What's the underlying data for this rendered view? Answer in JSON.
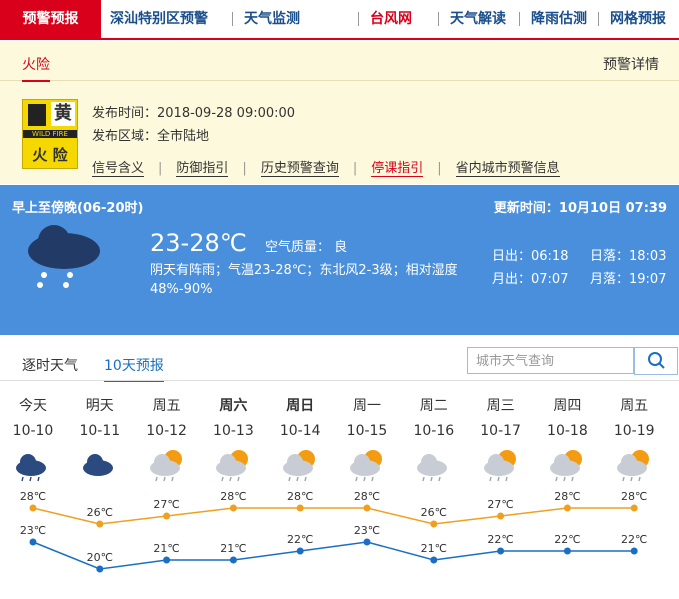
{
  "nav": {
    "items": [
      "预警预报",
      "深汕特别区预警",
      "天气监测",
      "台风网",
      "天气解读",
      "降雨估测",
      "网格预报"
    ]
  },
  "warning": {
    "tab": "火险",
    "detail_link": "预警详情",
    "icon": {
      "level": "黄",
      "sub": "WILD FIRE",
      "kind": "火 险"
    },
    "time": "发布时间：2018-09-28 09:00:00",
    "area": "发布区域：全市陆地",
    "links": [
      "信号含义",
      "防御指引",
      "历史预警查询",
      "停课指引",
      "省内城市预警信息"
    ]
  },
  "today": {
    "period": "早上至傍晚(06-20时)",
    "updated": "更新时间：10月10日 07:39",
    "temp": "23-28℃",
    "air": "空气质量： 良",
    "desc": "阴天有阵雨；气温23-28℃；东北风2-3级；相对湿度48%-90%",
    "sunrise": "日出：06:18",
    "sunset": "日落：18:03",
    "moonrise": "月出：07:07",
    "moonset": "月落：19:07"
  },
  "forecast": {
    "tabs": [
      "逐时天气",
      "10天预报"
    ],
    "search_placeholder": "城市天气查询",
    "weekdays": [
      "今天",
      "明天",
      "周五",
      "周六",
      "周日",
      "周一",
      "周二",
      "周三",
      "周四",
      "周五"
    ],
    "dates": [
      "10-10",
      "10-11",
      "10-12",
      "10-13",
      "10-14",
      "10-15",
      "10-16",
      "10-17",
      "10-18",
      "10-19"
    ],
    "highs": {
      "values": [
        28,
        26,
        27,
        28,
        28,
        28,
        26,
        27,
        28,
        28
      ],
      "value_labels": [
        "28℃",
        "26℃",
        "27℃",
        "28℃",
        "28℃",
        "28℃",
        "26℃",
        "27℃",
        "28℃",
        "28℃"
      ],
      "color": "#f0a020"
    },
    "lows": {
      "values": [
        23,
        20,
        21,
        21,
        22,
        23,
        21,
        22,
        22,
        22
      ],
      "value_labels": [
        "23℃",
        "20℃",
        "21℃",
        "21℃",
        "22℃",
        "23℃",
        "21℃",
        "22℃",
        "22℃",
        "22℃"
      ],
      "color": "#1a6fc4"
    }
  }
}
